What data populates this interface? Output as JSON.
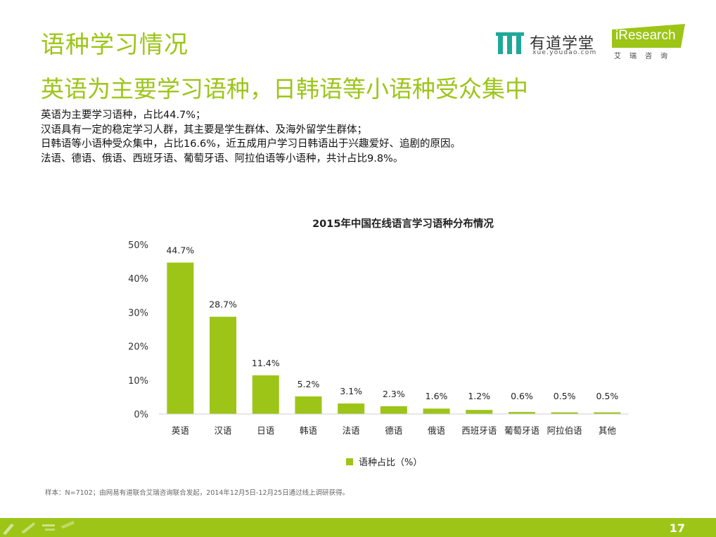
{
  "header": {
    "title": "语种学习情况",
    "subtitle": "英语为主要学习语种，日韩语等小语种受众集中"
  },
  "body_lines": [
    "英语为主要学习语种，占比44.7%；",
    "汉语具有一定的稳定学习人群，其主要是学生群体、及海外留学生群体；",
    "日韩语等小语种受众集中，占比16.6%，近五成用户学习日韩语出于兴趣爱好、追剧的原因。",
    "法语、德语、俄语、西班牙语、葡萄牙语、阿拉伯语等小语种，共计占比9.8%。"
  ],
  "logos": {
    "youdao_name": "有道学堂",
    "youdao_url": "xue.youdao.com",
    "iresearch_name": "iResearch",
    "iresearch_sub": "艾瑞咨询"
  },
  "chart_data": {
    "type": "bar",
    "title": "2015年中国在线语言学习语种分布情况",
    "categories": [
      "英语",
      "汉语",
      "日语",
      "韩语",
      "法语",
      "德语",
      "俄语",
      "西班牙语",
      "葡萄牙语",
      "阿拉伯语",
      "其他"
    ],
    "series": [
      {
        "name": "语种占比（%）",
        "values": [
          44.7,
          28.7,
          11.4,
          5.2,
          3.1,
          2.3,
          1.6,
          1.2,
          0.6,
          0.5,
          0.5
        ]
      }
    ],
    "data_labels": [
      "44.7%",
      "28.7%",
      "11.4%",
      "5.2%",
      "3.1%",
      "2.3%",
      "1.6%",
      "1.2%",
      "0.6%",
      "0.5%",
      "0.5%"
    ],
    "yticks": [
      "0%",
      "10%",
      "20%",
      "30%",
      "40%",
      "50%"
    ],
    "ytick_values": [
      0,
      10,
      20,
      30,
      40,
      50
    ],
    "ylim": [
      0,
      50
    ],
    "grid": false,
    "legend_position": "bottom",
    "bar_color": "#9dc518"
  },
  "footnote": "样本：N=7102；由网易有道联合艾瑞咨询联合发起，2014年12月5日-12月25日通过线上调研获得。",
  "page_number": "17",
  "colors": {
    "accent": "#9dc518",
    "youdao_teal": "#1fa89a"
  }
}
